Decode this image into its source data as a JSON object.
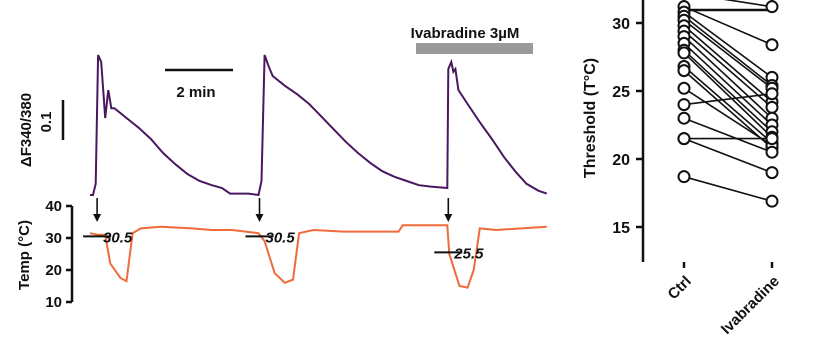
{
  "colors": {
    "calcium": "#4a1760",
    "temperature": "#f06a3c",
    "drug_bar": "#9a9a9a",
    "ink": "#111111"
  },
  "chart_data": [
    {
      "type": "line",
      "drug_label": "Ivabradine 3µM",
      "time_scale_label": "2 min",
      "calcium_scale_label": "0.1",
      "calcium_ylabel": "ΔF340/380",
      "temp_ylabel": "Temp (°C)",
      "temp_ticks": [
        "40",
        "30",
        "20",
        "10"
      ],
      "threshold_labels": [
        "30.5",
        "30.5",
        "25.5"
      ],
      "calcium_trace": [
        [
          0,
          0
        ],
        [
          0.15,
          0
        ],
        [
          0.28,
          0.08
        ],
        [
          0.4,
          1.0
        ],
        [
          0.55,
          0.95
        ],
        [
          0.75,
          0.55
        ],
        [
          0.9,
          0.75
        ],
        [
          1.05,
          0.62
        ],
        [
          1.2,
          0.62
        ],
        [
          1.8,
          0.55
        ],
        [
          2.4,
          0.48
        ],
        [
          3.0,
          0.4
        ],
        [
          3.6,
          0.3
        ],
        [
          4.2,
          0.22
        ],
        [
          4.8,
          0.15
        ],
        [
          5.4,
          0.1
        ],
        [
          6.0,
          0.07
        ],
        [
          6.5,
          0.05
        ],
        [
          6.9,
          0.01
        ],
        [
          7.2,
          0.01
        ],
        [
          7.8,
          0.01
        ],
        [
          8.3,
          0
        ],
        [
          8.45,
          0.1
        ],
        [
          8.6,
          1.0
        ],
        [
          8.8,
          0.92
        ],
        [
          9.0,
          0.85
        ],
        [
          9.6,
          0.78
        ],
        [
          10.2,
          0.72
        ],
        [
          10.8,
          0.65
        ],
        [
          11.4,
          0.56
        ],
        [
          12.0,
          0.47
        ],
        [
          12.6,
          0.38
        ],
        [
          13.2,
          0.3
        ],
        [
          13.8,
          0.23
        ],
        [
          14.4,
          0.17
        ],
        [
          15.0,
          0.13
        ],
        [
          15.6,
          0.1
        ],
        [
          16.2,
          0.07
        ],
        [
          16.8,
          0.06
        ],
        [
          17.6,
          0.05
        ],
        [
          17.65,
          0.9
        ],
        [
          17.8,
          0.95
        ],
        [
          17.9,
          0.88
        ],
        [
          18.0,
          0.9
        ],
        [
          18.15,
          0.75
        ],
        [
          18.6,
          0.65
        ],
        [
          19.2,
          0.52
        ],
        [
          19.8,
          0.4
        ],
        [
          20.4,
          0.27
        ],
        [
          21.0,
          0.16
        ],
        [
          21.5,
          0.08
        ],
        [
          22.1,
          0.03
        ],
        [
          22.5,
          0.01
        ]
      ],
      "temperature_trace": [
        [
          0,
          31.5
        ],
        [
          0.4,
          31
        ],
        [
          0.75,
          31
        ],
        [
          1.0,
          22
        ],
        [
          1.5,
          17.5
        ],
        [
          1.8,
          16.5
        ],
        [
          2.1,
          31.5
        ],
        [
          2.5,
          33
        ],
        [
          3.5,
          33.5
        ],
        [
          5,
          33
        ],
        [
          6,
          32.5
        ],
        [
          7,
          32.5
        ],
        [
          8.3,
          31.5
        ],
        [
          8.6,
          29
        ],
        [
          9.1,
          19
        ],
        [
          9.6,
          16
        ],
        [
          10.0,
          17
        ],
        [
          10.3,
          31.5
        ],
        [
          11.0,
          32.5
        ],
        [
          12.5,
          32
        ],
        [
          14,
          32
        ],
        [
          15.2,
          32
        ],
        [
          15.4,
          34
        ],
        [
          17,
          34
        ],
        [
          17.6,
          34
        ],
        [
          17.7,
          25
        ],
        [
          18.2,
          15
        ],
        [
          18.6,
          14.5
        ],
        [
          18.9,
          20
        ],
        [
          19.2,
          33
        ],
        [
          20,
          32.5
        ],
        [
          22.5,
          33.5
        ]
      ],
      "stimulus_times": [
        0.35,
        8.35,
        17.65
      ]
    },
    {
      "type": "scatter",
      "ylabel": "Threshold (T°C)",
      "categories": [
        "Ctrl",
        "Ivabradine"
      ],
      "ylim": [
        13.5,
        34.5
      ],
      "yticks": [
        15,
        20,
        25,
        30
      ],
      "pairs": [
        [
          32.2,
          31.2
        ],
        [
          31.2,
          28.4
        ],
        [
          30.8,
          26.0
        ],
        [
          30.5,
          25.4
        ],
        [
          30.2,
          25.2
        ],
        [
          29.8,
          24.2
        ],
        [
          29.4,
          23.8
        ],
        [
          29.0,
          23.0
        ],
        [
          28.5,
          22.5
        ],
        [
          28.0,
          22.0
        ],
        [
          27.8,
          21.6
        ],
        [
          26.8,
          21.2
        ],
        [
          26.5,
          20.8
        ],
        [
          25.2,
          21.0
        ],
        [
          24.0,
          24.8
        ],
        [
          23.0,
          20.5
        ],
        [
          21.5,
          21.5
        ],
        [
          21.5,
          19.0
        ],
        [
          18.7,
          16.9
        ]
      ],
      "significance_bracket": true
    }
  ]
}
